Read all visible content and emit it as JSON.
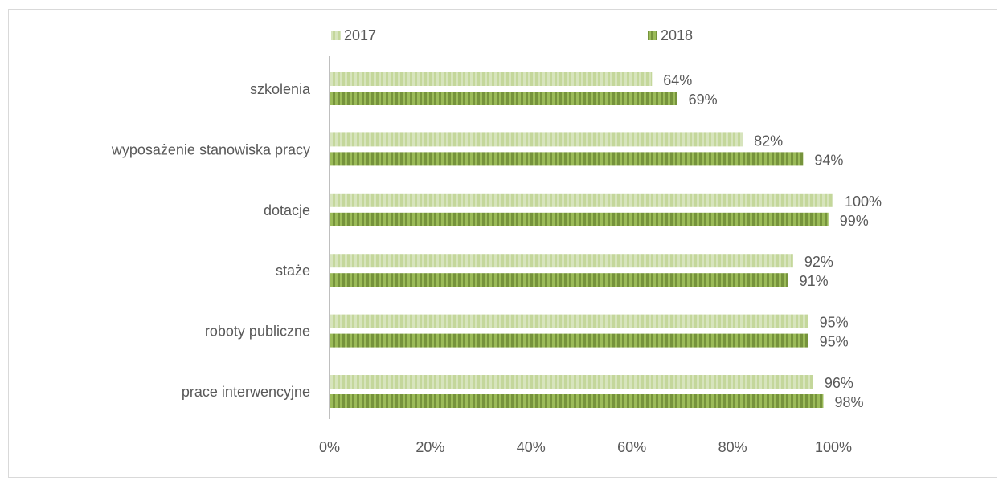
{
  "chart_data": {
    "type": "bar",
    "orientation": "horizontal",
    "categories": [
      "szkolenia",
      "wyposażenie stanowiska pracy",
      "dotacje",
      "staże",
      "roboty publiczne",
      "prace interwencyjne"
    ],
    "series": [
      {
        "name": "2017",
        "values": [
          64,
          82,
          100,
          92,
          95,
          96
        ],
        "labels": [
          "64%",
          "82%",
          "100%",
          "92%",
          "95%",
          "96%"
        ],
        "color": "#c4d79b"
      },
      {
        "name": "2018",
        "values": [
          69,
          94,
          99,
          91,
          95,
          98
        ],
        "labels": [
          "69%",
          "94%",
          "99%",
          "91%",
          "95%",
          "98%"
        ],
        "color": "#76933c"
      }
    ],
    "x_ticks": [
      "0%",
      "20%",
      "40%",
      "60%",
      "80%",
      "100%"
    ],
    "xlim": [
      0,
      100
    ],
    "legend_position": "top",
    "grid": false,
    "title": "",
    "xlabel": "",
    "ylabel": ""
  }
}
